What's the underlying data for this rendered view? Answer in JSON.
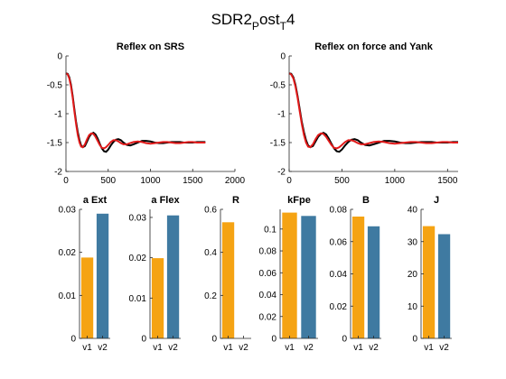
{
  "figure": {
    "title_main": "SDR2",
    "title_sub1": "P",
    "title_mid": "ost",
    "title_sub2": "T",
    "title_end": "4"
  },
  "chart_data": [
    {
      "type": "line",
      "title": "Reflex on SRS",
      "xlim": [
        0,
        2000
      ],
      "ylim": [
        -2,
        0
      ],
      "xticks": [
        0,
        500,
        1000,
        1500,
        2000
      ],
      "yticks": [
        -2,
        -1.5,
        -1,
        -0.5,
        0
      ],
      "series": [
        {
          "color": "#000000",
          "x": [
            0,
            20,
            40,
            60,
            80,
            100,
            120,
            140,
            160,
            180,
            200,
            225,
            250,
            275,
            300,
            325,
            350,
            375,
            400,
            425,
            450,
            475,
            500,
            530,
            560,
            590,
            620,
            650,
            680,
            720,
            760,
            800,
            850,
            900,
            950,
            1000,
            1050,
            1100,
            1150,
            1200,
            1250,
            1300,
            1350,
            1400,
            1450,
            1500,
            1550,
            1600,
            1650
          ],
          "y": [
            -0.3,
            -0.31,
            -0.37,
            -0.5,
            -0.7,
            -0.92,
            -1.14,
            -1.32,
            -1.46,
            -1.55,
            -1.58,
            -1.56,
            -1.48,
            -1.4,
            -1.35,
            -1.33,
            -1.36,
            -1.43,
            -1.52,
            -1.6,
            -1.65,
            -1.66,
            -1.62,
            -1.55,
            -1.49,
            -1.45,
            -1.44,
            -1.46,
            -1.5,
            -1.54,
            -1.55,
            -1.53,
            -1.5,
            -1.47,
            -1.47,
            -1.48,
            -1.5,
            -1.51,
            -1.51,
            -1.5,
            -1.49,
            -1.49,
            -1.49,
            -1.5,
            -1.5,
            -1.5,
            -1.49,
            -1.49,
            -1.49
          ]
        },
        {
          "color": "#e11a1a",
          "x": [
            0,
            20,
            40,
            60,
            80,
            100,
            120,
            140,
            160,
            180,
            200,
            225,
            250,
            275,
            300,
            325,
            350,
            375,
            400,
            425,
            450,
            475,
            500,
            530,
            560,
            590,
            620,
            650,
            680,
            720,
            760,
            800,
            850,
            900,
            950,
            1000,
            1050,
            1100,
            1150,
            1200,
            1250,
            1300,
            1350,
            1400,
            1450,
            1500,
            1550,
            1600,
            1650
          ],
          "y": [
            -0.3,
            -0.32,
            -0.39,
            -0.53,
            -0.73,
            -0.96,
            -1.18,
            -1.37,
            -1.5,
            -1.57,
            -1.58,
            -1.53,
            -1.44,
            -1.37,
            -1.34,
            -1.35,
            -1.4,
            -1.47,
            -1.54,
            -1.59,
            -1.6,
            -1.58,
            -1.54,
            -1.49,
            -1.46,
            -1.46,
            -1.48,
            -1.51,
            -1.53,
            -1.53,
            -1.51,
            -1.49,
            -1.48,
            -1.49,
            -1.51,
            -1.52,
            -1.51,
            -1.5,
            -1.49,
            -1.49,
            -1.5,
            -1.51,
            -1.51,
            -1.5,
            -1.49,
            -1.49,
            -1.5,
            -1.5,
            -1.5
          ]
        }
      ]
    },
    {
      "type": "line",
      "title": "Reflex on force and Yank",
      "xlim": [
        0,
        1600
      ],
      "ylim": [
        -2,
        0
      ],
      "xticks": [
        0,
        500,
        1000,
        1500
      ],
      "yticks": [
        -2,
        -1.5,
        -1,
        -0.5,
        0
      ],
      "series": [
        {
          "color": "#000000",
          "x": [
            0,
            20,
            40,
            60,
            80,
            100,
            120,
            140,
            160,
            180,
            200,
            225,
            250,
            275,
            300,
            325,
            350,
            375,
            400,
            425,
            450,
            475,
            500,
            530,
            560,
            590,
            620,
            650,
            680,
            720,
            760,
            800,
            850,
            900,
            950,
            1000,
            1050,
            1100,
            1150,
            1200,
            1250,
            1300,
            1350,
            1400,
            1450,
            1500,
            1550,
            1600
          ],
          "y": [
            -0.3,
            -0.31,
            -0.37,
            -0.5,
            -0.7,
            -0.92,
            -1.14,
            -1.32,
            -1.46,
            -1.55,
            -1.58,
            -1.56,
            -1.48,
            -1.4,
            -1.35,
            -1.33,
            -1.36,
            -1.43,
            -1.52,
            -1.6,
            -1.65,
            -1.66,
            -1.62,
            -1.55,
            -1.49,
            -1.45,
            -1.44,
            -1.46,
            -1.5,
            -1.54,
            -1.55,
            -1.53,
            -1.5,
            -1.47,
            -1.47,
            -1.48,
            -1.5,
            -1.51,
            -1.51,
            -1.5,
            -1.49,
            -1.49,
            -1.49,
            -1.5,
            -1.5,
            -1.5,
            -1.49,
            -1.49
          ]
        },
        {
          "color": "#e11a1a",
          "x": [
            0,
            20,
            40,
            60,
            80,
            100,
            120,
            140,
            160,
            180,
            200,
            225,
            250,
            275,
            300,
            325,
            350,
            375,
            400,
            425,
            450,
            475,
            500,
            530,
            560,
            590,
            620,
            650,
            680,
            720,
            760,
            800,
            850,
            900,
            950,
            1000,
            1050,
            1100,
            1150,
            1200,
            1250,
            1300,
            1350,
            1400,
            1450,
            1500,
            1550,
            1600
          ],
          "y": [
            -0.3,
            -0.32,
            -0.39,
            -0.53,
            -0.73,
            -0.96,
            -1.18,
            -1.37,
            -1.5,
            -1.57,
            -1.58,
            -1.53,
            -1.44,
            -1.37,
            -1.34,
            -1.35,
            -1.4,
            -1.47,
            -1.54,
            -1.59,
            -1.6,
            -1.58,
            -1.54,
            -1.49,
            -1.46,
            -1.46,
            -1.48,
            -1.51,
            -1.53,
            -1.53,
            -1.51,
            -1.49,
            -1.48,
            -1.49,
            -1.51,
            -1.52,
            -1.51,
            -1.5,
            -1.49,
            -1.49,
            -1.5,
            -1.51,
            -1.51,
            -1.5,
            -1.49,
            -1.49,
            -1.5,
            -1.5
          ]
        }
      ]
    },
    {
      "type": "bar",
      "title": "a Ext",
      "categories": [
        "v1",
        "v2"
      ],
      "values": [
        0.0188,
        0.029
      ],
      "colors": [
        "#f5a313",
        "#3f7aa1"
      ],
      "ylim": [
        0,
        0.03
      ],
      "yticks": [
        0,
        0.01,
        0.02,
        0.03
      ],
      "ytick_labels": [
        "0",
        "0.01",
        "0.02",
        "0.03"
      ]
    },
    {
      "type": "bar",
      "title": "a Flex",
      "categories": [
        "v1",
        "v2"
      ],
      "values": [
        0.0199,
        0.0305
      ],
      "colors": [
        "#f5a313",
        "#3f7aa1"
      ],
      "ylim": [
        0,
        0.032
      ],
      "yticks": [
        0,
        0.01,
        0.02,
        0.03
      ],
      "ytick_labels": [
        "0",
        "0.01",
        "0.02",
        "0.03"
      ]
    },
    {
      "type": "bar",
      "title": "R",
      "categories": [
        "v1",
        "v2"
      ],
      "values": [
        0.54,
        0
      ],
      "colors": [
        "#f5a313",
        "#3f7aa1"
      ],
      "ylim": [
        0,
        0.6
      ],
      "yticks": [
        0,
        0.2,
        0.4,
        0.6
      ],
      "ytick_labels": [
        "0",
        "0.2",
        "0.4",
        "0.6"
      ]
    },
    {
      "type": "bar",
      "title": "kFpe",
      "categories": [
        "v1",
        "v2"
      ],
      "values": [
        0.115,
        0.112
      ],
      "colors": [
        "#f5a313",
        "#3f7aa1"
      ],
      "ylim": [
        0,
        0.118
      ],
      "yticks": [
        0,
        0.02,
        0.04,
        0.06,
        0.08,
        0.1
      ],
      "ytick_labels": [
        "0",
        "0.02",
        "0.04",
        "0.06",
        "0.08",
        "0.1"
      ]
    },
    {
      "type": "bar",
      "title": "B",
      "categories": [
        "v1",
        "v2"
      ],
      "values": [
        0.0755,
        0.0695
      ],
      "colors": [
        "#f5a313",
        "#3f7aa1"
      ],
      "ylim": [
        0,
        0.08
      ],
      "yticks": [
        0,
        0.02,
        0.04,
        0.06,
        0.08
      ],
      "ytick_labels": [
        "0",
        "0.02",
        "0.04",
        "0.06",
        "0.08"
      ]
    },
    {
      "type": "bar",
      "title": "J",
      "categories": [
        "v1",
        "v2"
      ],
      "values": [
        34.8,
        32.3
      ],
      "colors": [
        "#f5a313",
        "#3f7aa1"
      ],
      "ylim": [
        0,
        40
      ],
      "yticks": [
        0,
        10,
        20,
        30,
        40
      ],
      "ytick_labels": [
        "0",
        "10",
        "20",
        "30",
        "40"
      ]
    }
  ]
}
